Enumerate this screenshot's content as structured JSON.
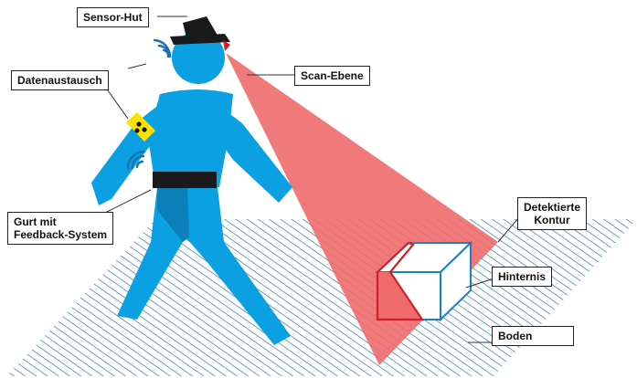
{
  "labels": {
    "sensor_hut": "Sensor-Hut",
    "datenaustausch": "Datenaustausch",
    "scan_ebene": "Scan-Ebene",
    "detektierte_kontur_line1": "Detektierte",
    "detektierte_kontur_line2": "Kontur",
    "hinternis": "Hinternis",
    "gurt_line1": "Gurt mit",
    "gurt_line2": "Feedback-System",
    "boden": "Boden"
  },
  "colors": {
    "figure": "#0aa0e2",
    "figure_shadow": "#0a7fb8",
    "scan_beam": "#ee6b6b",
    "contour": "#d21e2a",
    "obstacle_edge": "#1b80c4",
    "floor_hatch": "#1f6f99",
    "armband": "#ffe100",
    "belt": "#1a1a1a",
    "hat": "#1a1a1a"
  },
  "icons": [
    "signal-waves-icon",
    "armband-dots-icon"
  ]
}
